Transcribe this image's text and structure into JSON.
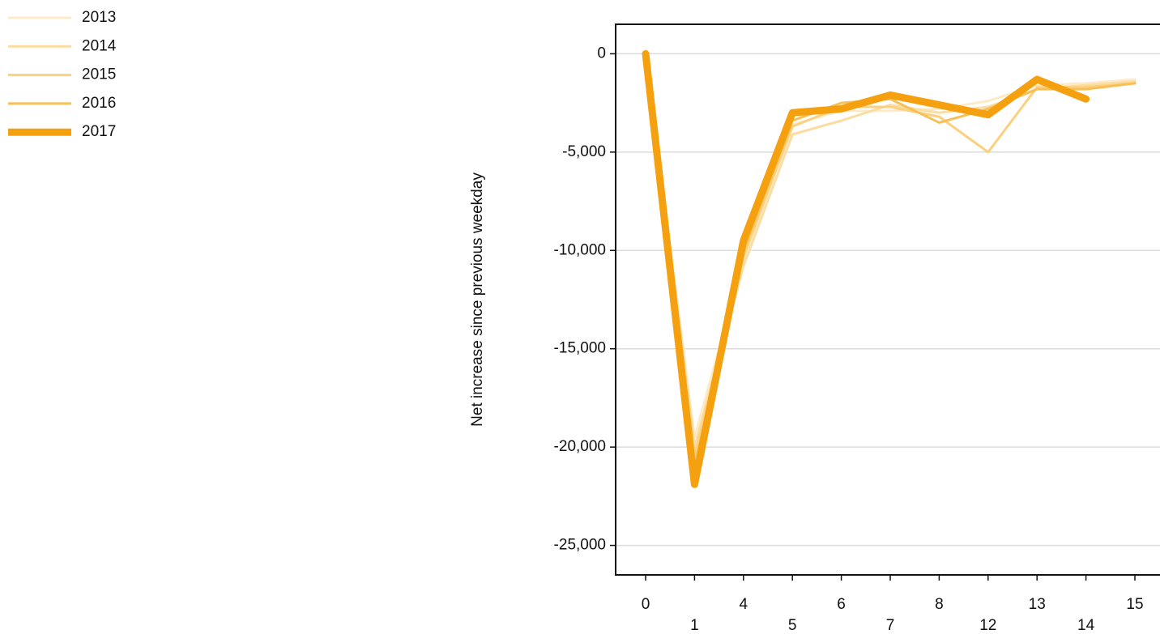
{
  "chart_data": {
    "type": "line",
    "y_label": "Net increase since previous weekday",
    "categories": [
      "0",
      "1",
      "4",
      "5",
      "6",
      "7",
      "8",
      "12",
      "13",
      "14",
      "15"
    ],
    "series": [
      {
        "name": "2013",
        "color": "#fdebc8",
        "linewidth": 3,
        "values": [
          0,
          -19500,
          -10500,
          -3600,
          -2900,
          -2900,
          -2800,
          -2400,
          -1600,
          -1500,
          -1300
        ]
      },
      {
        "name": "2014",
        "color": "#fcdca0",
        "linewidth": 3,
        "values": [
          0,
          -20000,
          -10800,
          -4100,
          -3400,
          -2600,
          -3000,
          -2700,
          -1800,
          -1600,
          -1400
        ]
      },
      {
        "name": "2015",
        "color": "#fbd07f",
        "linewidth": 3,
        "values": [
          0,
          -20500,
          -10300,
          -3700,
          -2700,
          -2700,
          -3200,
          -5000,
          -1700,
          -1700,
          -1500
        ]
      },
      {
        "name": "2016",
        "color": "#f8bf55",
        "linewidth": 3,
        "values": [
          0,
          -21000,
          -10000,
          -3400,
          -2500,
          -2300,
          -3500,
          -2800,
          -1800,
          -1800,
          -1500
        ]
      },
      {
        "name": "2017",
        "color": "#f5a00e",
        "linewidth": 9,
        "values": [
          0,
          -21900,
          -9500,
          -3000,
          -2800,
          -2100,
          -2600,
          -3100,
          -1300,
          -2300,
          null
        ]
      }
    ],
    "ylim": [
      -26500,
      1500
    ],
    "yticks": [
      {
        "value": -25000,
        "label": "-25,000"
      },
      {
        "value": -20000,
        "label": "-20,000"
      },
      {
        "value": -15000,
        "label": "-15,000"
      },
      {
        "value": -10000,
        "label": "-10,000"
      },
      {
        "value": -5000,
        "label": "-5,000"
      },
      0
    ],
    "grid": true,
    "legend": "top-left"
  }
}
